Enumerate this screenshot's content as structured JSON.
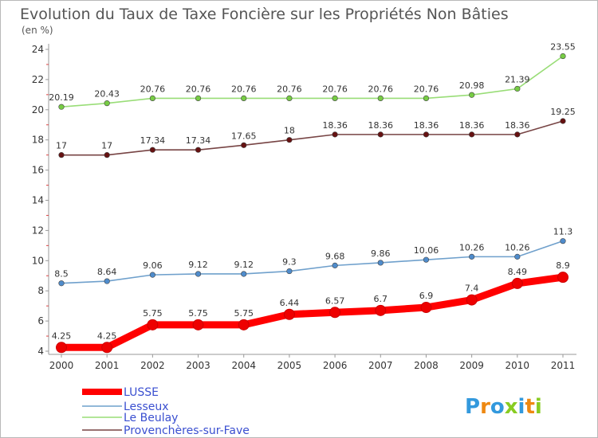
{
  "chart_data": {
    "type": "line",
    "title": "Evolution du Taux de Taxe Foncière sur les Propriétés Non Bâties",
    "subtitle": "(en %)",
    "x": [
      "2000",
      "2001",
      "2002",
      "2003",
      "2004",
      "2005",
      "2006",
      "2007",
      "2008",
      "2009",
      "2010",
      "2011"
    ],
    "ylim": [
      4,
      24
    ],
    "yticks": [
      4,
      6,
      8,
      10,
      12,
      14,
      16,
      18,
      20,
      22,
      24
    ],
    "grid": false,
    "legend_position": "bottom-left",
    "series": [
      {
        "name": "LUSSE",
        "color": "#ff0000",
        "marker_color": "#ee0000",
        "values": [
          4.25,
          4.25,
          5.75,
          5.75,
          5.75,
          6.44,
          6.57,
          6.7,
          6.9,
          7.4,
          8.49,
          8.9
        ],
        "labels": [
          "4.25",
          "4.25",
          "5.75",
          "5.75",
          "5.75",
          "6.44",
          "6.57",
          "6.7",
          "6.9",
          "7.4",
          "8.49",
          "8.9"
        ]
      },
      {
        "name": "Lesseux",
        "color": "#6fa0cc",
        "marker_color": "#4f8ccc",
        "values": [
          8.5,
          8.64,
          9.06,
          9.12,
          9.12,
          9.3,
          9.68,
          9.86,
          10.06,
          10.26,
          10.26,
          11.3
        ],
        "labels": [
          "8.5",
          "8.64",
          "9.06",
          "9.12",
          "9.12",
          "9.3",
          "9.68",
          "9.86",
          "10.06",
          "10.26",
          "10.26",
          "11.3"
        ]
      },
      {
        "name": "Le Beulay",
        "color": "#99dd77",
        "marker_color": "#77cc44",
        "values": [
          20.19,
          20.43,
          20.76,
          20.76,
          20.76,
          20.76,
          20.76,
          20.76,
          20.76,
          20.98,
          21.39,
          23.55
        ],
        "labels": [
          "20.19",
          "20.43",
          "20.76",
          "20.76",
          "20.76",
          "20.76",
          "20.76",
          "20.76",
          "20.76",
          "20.98",
          "21.39",
          "23.55"
        ]
      },
      {
        "name": "Provenchères-sur-Fave",
        "color": "#774444",
        "marker_color": "#661111",
        "values": [
          17,
          17,
          17.34,
          17.34,
          17.65,
          18,
          18.36,
          18.36,
          18.36,
          18.36,
          18.36,
          19.25
        ],
        "labels": [
          "17",
          "17",
          "17.34",
          "17.34",
          "17.65",
          "18",
          "18.36",
          "18.36",
          "18.36",
          "18.36",
          "18.36",
          "19.25"
        ]
      }
    ]
  },
  "logo": {
    "letters": [
      "P",
      "r",
      "o",
      "x",
      "i",
      "t",
      "i"
    ],
    "colors": [
      "#3399dd",
      "#ee8811",
      "#3399dd",
      "#88cc22",
      "#3399dd",
      "#ee8811",
      "#88cc22"
    ]
  }
}
